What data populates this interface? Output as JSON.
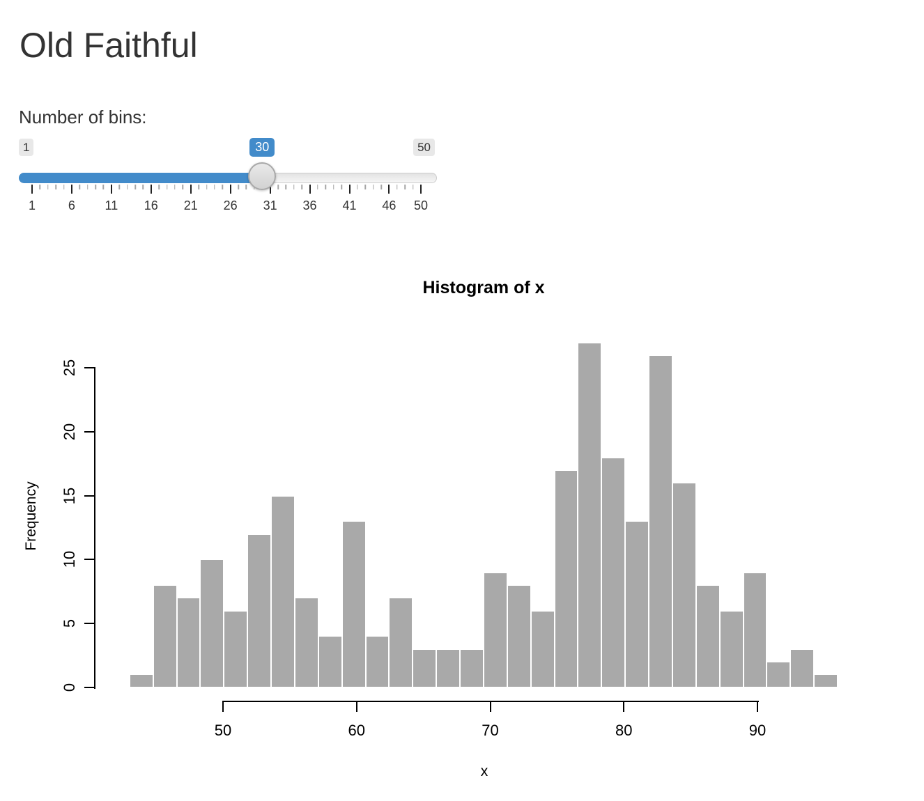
{
  "page": {
    "title": "Old Faithful"
  },
  "slider": {
    "label": "Number of bins:",
    "min": 1,
    "max": 50,
    "value": 30,
    "min_label": "1",
    "max_label": "50",
    "value_label": "30",
    "grid_major_labels": [
      "1",
      "6",
      "11",
      "16",
      "21",
      "26",
      "31",
      "36",
      "41",
      "46",
      "50"
    ],
    "accent_color": "#428bca"
  },
  "chart_data": {
    "type": "bar",
    "title": "Histogram of x",
    "xlabel": "x",
    "ylabel": "Frequency",
    "xlim": [
      43,
      96
    ],
    "ylim": [
      0,
      27
    ],
    "bins": 30,
    "bin_width": 1.7667,
    "counts": [
      1,
      8,
      7,
      10,
      6,
      12,
      15,
      7,
      4,
      13,
      4,
      7,
      3,
      3,
      3,
      9,
      8,
      6,
      17,
      27,
      18,
      13,
      26,
      16,
      8,
      6,
      9,
      2,
      3,
      1
    ],
    "x_ticks": [
      50,
      60,
      70,
      80,
      90
    ],
    "y_ticks": [
      0,
      5,
      10,
      15,
      20,
      25
    ],
    "bar_color": "#a9a9a9",
    "bar_border_color": "#ffffff",
    "axis_color": "#000000",
    "grid": false,
    "legend": "none"
  }
}
